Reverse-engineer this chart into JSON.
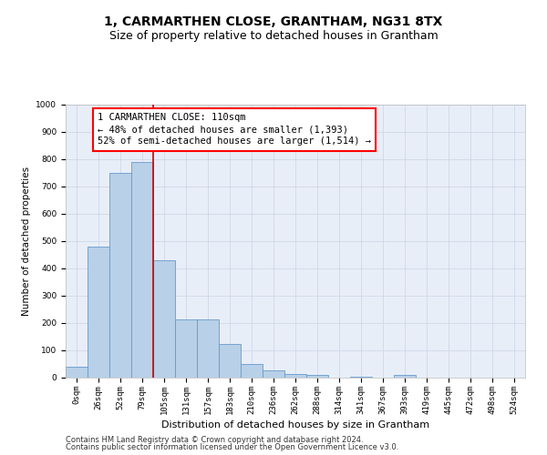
{
  "title": "1, CARMARTHEN CLOSE, GRANTHAM, NG31 8TX",
  "subtitle": "Size of property relative to detached houses in Grantham",
  "xlabel": "Distribution of detached houses by size in Grantham",
  "ylabel": "Number of detached properties",
  "categories": [
    "0sqm",
    "26sqm",
    "52sqm",
    "79sqm",
    "105sqm",
    "131sqm",
    "157sqm",
    "183sqm",
    "210sqm",
    "236sqm",
    "262sqm",
    "288sqm",
    "314sqm",
    "341sqm",
    "367sqm",
    "393sqm",
    "419sqm",
    "445sqm",
    "472sqm",
    "498sqm",
    "524sqm"
  ],
  "bar_values": [
    40,
    480,
    750,
    790,
    430,
    215,
    215,
    125,
    50,
    27,
    13,
    10,
    0,
    5,
    0,
    10,
    0,
    0,
    0,
    0,
    0
  ],
  "bar_color": "#b8d0e8",
  "bar_edge_color": "#6699cc",
  "grid_color": "#d0d8e8",
  "background_color": "#e8eef8",
  "annotation_text_line1": "1 CARMARTHEN CLOSE: 110sqm",
  "annotation_text_line2": "← 48% of detached houses are smaller (1,393)",
  "annotation_text_line3": "52% of semi-detached houses are larger (1,514) →",
  "vline_color": "#cc0000",
  "vline_x_index": 3.5,
  "ylim": [
    0,
    1000
  ],
  "yticks": [
    0,
    100,
    200,
    300,
    400,
    500,
    600,
    700,
    800,
    900,
    1000
  ],
  "footer_line1": "Contains HM Land Registry data © Crown copyright and database right 2024.",
  "footer_line2": "Contains public sector information licensed under the Open Government Licence v3.0.",
  "title_fontsize": 10,
  "subtitle_fontsize": 9,
  "xlabel_fontsize": 8,
  "ylabel_fontsize": 7.5,
  "tick_fontsize": 6.5,
  "annotation_fontsize": 7.5,
  "footer_fontsize": 6
}
